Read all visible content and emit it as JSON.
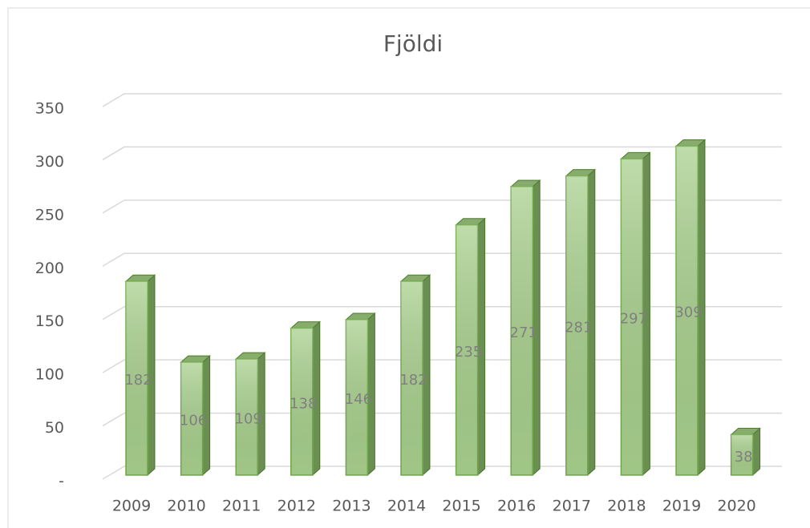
{
  "chart_data": {
    "type": "bar",
    "title": "Fjöldi",
    "categories": [
      "2009",
      "2010",
      "2011",
      "2012",
      "2013",
      "2014",
      "2015",
      "2016",
      "2017",
      "2018",
      "2019",
      "2020"
    ],
    "values": [
      182,
      106,
      109,
      138,
      146,
      182,
      235,
      271,
      281,
      297,
      309,
      38
    ],
    "color": "#a9d18e",
    "ylim": [
      0,
      350
    ],
    "yticks": [
      {
        "value": 0,
        "label": "-"
      },
      50,
      100,
      150,
      200,
      250,
      300,
      350
    ],
    "grid": true
  }
}
